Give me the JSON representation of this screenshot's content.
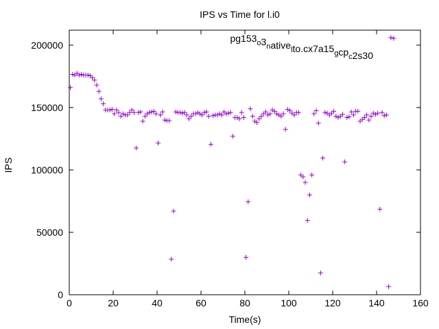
{
  "chart_data": {
    "type": "scatter",
    "title": "IPS vs Time for l.i0",
    "xlabel": "Time(s)",
    "ylabel": "IPS",
    "xlim": [
      0,
      160
    ],
    "ylim": [
      0,
      212000
    ],
    "x_ticks": [
      0,
      20,
      40,
      60,
      80,
      100,
      120,
      140,
      160
    ],
    "y_ticks": [
      0,
      50000,
      100000,
      150000,
      200000
    ],
    "x_tick_labels": [
      "0",
      "20",
      "40",
      "60",
      "80",
      "100",
      "120",
      "140",
      "160"
    ],
    "y_tick_labels": [
      "0",
      "50000",
      "100000",
      "150000",
      "200000"
    ],
    "grid": false,
    "legend_position": "top-right",
    "legend": {
      "label": "pg153",
      "segments": [
        {
          "text": "pg153",
          "shift": "none"
        },
        {
          "text": "o",
          "shift": "sub"
        },
        {
          "text": "3",
          "shift": "none"
        },
        {
          "text": "n",
          "shift": "sub"
        },
        {
          "text": "ative",
          "shift": "none"
        },
        {
          "text": "l",
          "shift": "sub"
        },
        {
          "text": "to.cx7a15",
          "shift": "none"
        },
        {
          "text": "g",
          "shift": "sub"
        },
        {
          "text": "cp",
          "shift": "none"
        },
        {
          "text": "c",
          "shift": "sub"
        },
        {
          "text": "2s30",
          "shift": "none"
        }
      ]
    },
    "marker": "+",
    "series_color": "#9400d3",
    "series": [
      {
        "name": "pg153",
        "points": [
          [
            0.5,
            166000
          ],
          [
            1.5,
            176500
          ],
          [
            2.5,
            176000
          ],
          [
            3.5,
            177500
          ],
          [
            4.5,
            176000
          ],
          [
            5.5,
            176500
          ],
          [
            6.5,
            176000
          ],
          [
            7.5,
            176000
          ],
          [
            8.5,
            176000
          ],
          [
            9.5,
            175500
          ],
          [
            10.5,
            174000
          ],
          [
            11.5,
            172000
          ],
          [
            12.5,
            168000
          ],
          [
            13.5,
            163000
          ],
          [
            14.5,
            157000
          ],
          [
            15.5,
            153000
          ],
          [
            16.5,
            148000
          ],
          [
            17.5,
            148000
          ],
          [
            18.5,
            148000
          ],
          [
            19.5,
            148500
          ],
          [
            20.5,
            145000
          ],
          [
            21.5,
            148000
          ],
          [
            22.5,
            146000
          ],
          [
            23.5,
            143000
          ],
          [
            24.5,
            145000
          ],
          [
            25.5,
            144000
          ],
          [
            26.5,
            144000
          ],
          [
            27.5,
            146000
          ],
          [
            28.5,
            148000
          ],
          [
            29.5,
            146000
          ],
          [
            30.5,
            117500
          ],
          [
            31.5,
            146000
          ],
          [
            32.5,
            146500
          ],
          [
            33.5,
            139000
          ],
          [
            34.5,
            143000
          ],
          [
            35.5,
            145000
          ],
          [
            36.5,
            146000
          ],
          [
            37.5,
            146500
          ],
          [
            38.5,
            147000
          ],
          [
            39.5,
            145000
          ],
          [
            40.5,
            121500
          ],
          [
            41.5,
            144000
          ],
          [
            42.5,
            146500
          ],
          [
            43.5,
            140000
          ],
          [
            44.5,
            139500
          ],
          [
            45.5,
            139500
          ],
          [
            46.5,
            28500
          ],
          [
            47.5,
            67000
          ],
          [
            48.5,
            146500
          ],
          [
            49.5,
            146000
          ],
          [
            50.5,
            146000
          ],
          [
            51.5,
            145500
          ],
          [
            52.5,
            146000
          ],
          [
            53.5,
            144000
          ],
          [
            54.5,
            141000
          ],
          [
            55.5,
            143000
          ],
          [
            56.5,
            145000
          ],
          [
            57.5,
            145000
          ],
          [
            58.5,
            146000
          ],
          [
            59.5,
            145000
          ],
          [
            60.5,
            144000
          ],
          [
            61.5,
            146000
          ],
          [
            62.5,
            146500
          ],
          [
            63.5,
            143000
          ],
          [
            64.5,
            120500
          ],
          [
            65.5,
            143500
          ],
          [
            66.5,
            144000
          ],
          [
            67.5,
            144000
          ],
          [
            68.5,
            145000
          ],
          [
            69.5,
            144000
          ],
          [
            70.5,
            146500
          ],
          [
            71.5,
            145000
          ],
          [
            72.5,
            145500
          ],
          [
            73.5,
            146000
          ],
          [
            74.5,
            127000
          ],
          [
            75.5,
            142000
          ],
          [
            76.5,
            142000
          ],
          [
            77.5,
            141000
          ],
          [
            78.5,
            146000
          ],
          [
            79.5,
            142000
          ],
          [
            80.5,
            30000
          ],
          [
            81.5,
            74500
          ],
          [
            82.5,
            149000
          ],
          [
            83.5,
            143000
          ],
          [
            84.5,
            139000
          ],
          [
            85.5,
            138000
          ],
          [
            86.5,
            141000
          ],
          [
            87.5,
            143000
          ],
          [
            88.5,
            145000
          ],
          [
            89.5,
            146500
          ],
          [
            90.5,
            144000
          ],
          [
            91.5,
            145000
          ],
          [
            92.5,
            148000
          ],
          [
            93.5,
            147000
          ],
          [
            94.5,
            145000
          ],
          [
            95.5,
            144000
          ],
          [
            96.5,
            143000
          ],
          [
            97.5,
            145000
          ],
          [
            98.5,
            132500
          ],
          [
            99.5,
            148500
          ],
          [
            100.5,
            147500
          ],
          [
            101.5,
            145500
          ],
          [
            102.5,
            144000
          ],
          [
            103.5,
            146000
          ],
          [
            104.5,
            146000
          ],
          [
            105.5,
            96000
          ],
          [
            106.5,
            94500
          ],
          [
            107.5,
            90000
          ],
          [
            108.5,
            59500
          ],
          [
            109.5,
            80000
          ],
          [
            110.5,
            96000
          ],
          [
            111.5,
            145000
          ],
          [
            112.5,
            147500
          ],
          [
            113.5,
            137500
          ],
          [
            114.5,
            17500
          ],
          [
            115.5,
            109500
          ],
          [
            116.5,
            146000
          ],
          [
            117.5,
            145500
          ],
          [
            118.5,
            144000
          ],
          [
            119.5,
            145500
          ],
          [
            120.5,
            147000
          ],
          [
            121.5,
            143000
          ],
          [
            122.5,
            142000
          ],
          [
            123.5,
            143000
          ],
          [
            124.5,
            144500
          ],
          [
            125.5,
            106500
          ],
          [
            126.5,
            142000
          ],
          [
            127.5,
            142500
          ],
          [
            128.5,
            146500
          ],
          [
            129.5,
            144000
          ],
          [
            130.5,
            147000
          ],
          [
            131.5,
            147000
          ],
          [
            132.5,
            139000
          ],
          [
            133.5,
            140500
          ],
          [
            134.5,
            142000
          ],
          [
            135.5,
            144000
          ],
          [
            136.5,
            140000
          ],
          [
            137.5,
            143000
          ],
          [
            138.5,
            145500
          ],
          [
            139.5,
            144500
          ],
          [
            140.5,
            145500
          ],
          [
            141.5,
            68500
          ],
          [
            142.5,
            146000
          ],
          [
            143.5,
            143500
          ],
          [
            144.5,
            144000
          ],
          [
            145.5,
            6500
          ],
          [
            146.5,
            206000
          ]
        ]
      }
    ]
  }
}
